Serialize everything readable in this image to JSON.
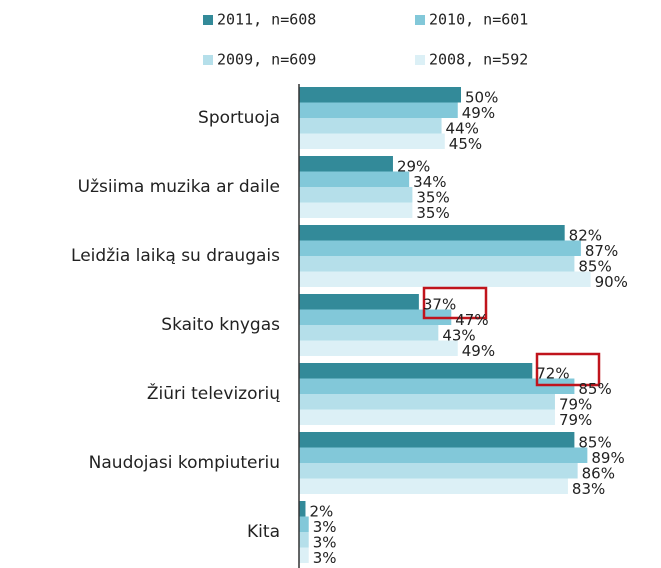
{
  "chart_data": {
    "type": "bar",
    "orientation": "horizontal",
    "categories": [
      "Sportuoja",
      "Užsiima muzika ar daile",
      "Leidžia laiką su draugais",
      "Skaito knygas",
      "Žiūri televizorių",
      "Naudojasi kompiuteriu",
      "Kita"
    ],
    "series": [
      {
        "name": "2011, n=608",
        "color": "#338a99",
        "values": [
          50,
          29,
          82,
          37,
          72,
          85,
          2
        ],
        "value_labels": [
          "50%",
          "29%",
          "82%",
          "37%",
          "72%",
          "85%",
          "2%"
        ]
      },
      {
        "name": "2010, n=601",
        "color": "#82c8d9",
        "values": [
          49,
          34,
          87,
          47,
          85,
          89,
          3
        ],
        "value_labels": [
          "49%",
          "34%",
          "87%",
          "47%",
          "85%",
          "89%",
          "3%"
        ]
      },
      {
        "name": "2009, n=609",
        "color": "#b5dfea",
        "values": [
          44,
          35,
          85,
          43,
          79,
          86,
          3
        ],
        "value_labels": [
          "44%",
          "35%",
          "85%",
          "43%",
          "79%",
          "86%",
          "3%"
        ]
      },
      {
        "name": "2008, n=592",
        "color": "#dcf0f6",
        "values": [
          45,
          35,
          90,
          49,
          79,
          83,
          3
        ],
        "value_labels": [
          "45%",
          "35%",
          "90%",
          "49%",
          "79%",
          "83%",
          "3%"
        ]
      }
    ]
  }
}
